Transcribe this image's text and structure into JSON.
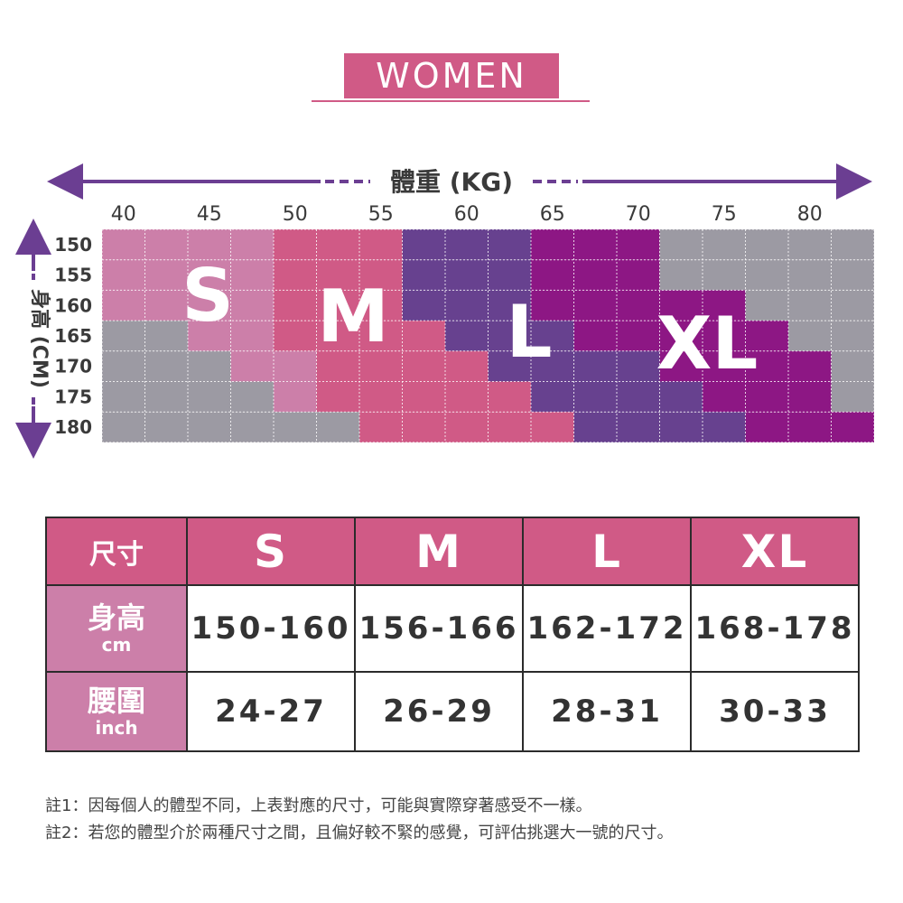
{
  "title": "WOMEN",
  "chart_data": {
    "type": "heatmap",
    "xlabel": "體重 (KG)",
    "ylabel": "身高 (CM)",
    "x_ticks": [
      40,
      45,
      50,
      55,
      60,
      65,
      70,
      75,
      80
    ],
    "y_ticks": [
      150,
      155,
      160,
      165,
      170,
      175,
      180
    ],
    "x_columns": [
      40,
      42.5,
      45,
      47.5,
      50,
      52.5,
      55,
      57.5,
      60,
      62.5,
      65,
      67.5,
      70,
      72.5,
      75,
      77.5,
      80,
      82.5
    ],
    "size_labels": [
      "S",
      "M",
      "L",
      "XL"
    ],
    "size_colors": {
      "S": "#cc7fa9",
      "M": "#d05a86",
      "L": "#67418f",
      "XL": "#8d1784",
      "none": "#9c9aa3"
    },
    "rows": [
      {
        "height": 150,
        "cells": [
          "S",
          "S",
          "S",
          "S",
          "M",
          "M",
          "M",
          "L",
          "L",
          "L",
          "XL",
          "XL",
          "XL",
          "none",
          "none",
          "none",
          "none",
          "none"
        ]
      },
      {
        "height": 155,
        "cells": [
          "S",
          "S",
          "S",
          "S",
          "M",
          "M",
          "M",
          "L",
          "L",
          "L",
          "XL",
          "XL",
          "XL",
          "none",
          "none",
          "none",
          "none",
          "none"
        ]
      },
      {
        "height": 160,
        "cells": [
          "S",
          "S",
          "S",
          "S",
          "M",
          "M",
          "M",
          "L",
          "L",
          "L",
          "XL",
          "XL",
          "XL",
          "XL",
          "XL",
          "none",
          "none",
          "none"
        ]
      },
      {
        "height": 165,
        "cells": [
          "none",
          "none",
          "S",
          "S",
          "M",
          "M",
          "M",
          "M",
          "L",
          "L",
          "L",
          "XL",
          "XL",
          "XL",
          "XL",
          "XL",
          "none",
          "none"
        ]
      },
      {
        "height": 170,
        "cells": [
          "none",
          "none",
          "none",
          "S",
          "S",
          "M",
          "M",
          "M",
          "M",
          "L",
          "L",
          "L",
          "L",
          "XL",
          "XL",
          "XL",
          "XL",
          "none"
        ]
      },
      {
        "height": 175,
        "cells": [
          "none",
          "none",
          "none",
          "none",
          "S",
          "M",
          "M",
          "M",
          "M",
          "M",
          "L",
          "L",
          "L",
          "L",
          "XL",
          "XL",
          "XL",
          "none"
        ]
      },
      {
        "height": 180,
        "cells": [
          "none",
          "none",
          "none",
          "none",
          "none",
          "none",
          "M",
          "M",
          "M",
          "M",
          "M",
          "L",
          "L",
          "L",
          "L",
          "XL",
          "XL",
          "XL"
        ]
      }
    ]
  },
  "table": {
    "header_label": "尺寸",
    "sizes": [
      "S",
      "M",
      "L",
      "XL"
    ],
    "rows": [
      {
        "label": "身高",
        "unit": "cm",
        "values": [
          "150-160",
          "156-166",
          "162-172",
          "168-178"
        ]
      },
      {
        "label": "腰圍",
        "unit": "inch",
        "values": [
          "24-27",
          "26-29",
          "28-31",
          "30-33"
        ]
      }
    ]
  },
  "notes": [
    "註1：因每個人的體型不同，上表對應的尺寸，可能與實際穿著感受不一樣。",
    "註2：若您的體型介於兩種尺寸之間，且偏好較不緊的感覺，可評估挑選大一號的尺寸。"
  ]
}
